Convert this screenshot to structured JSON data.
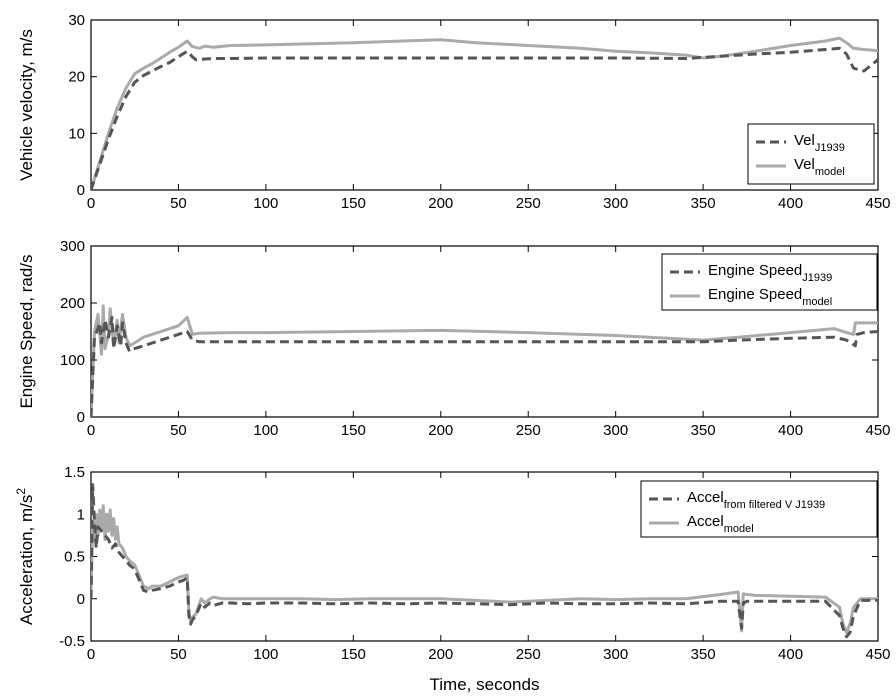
{
  "chart_data": [
    {
      "type": "line",
      "ylabel": "Vehicle velocity, m/s",
      "xlabel": "",
      "xlim": [
        0,
        450
      ],
      "ylim": [
        0,
        30
      ],
      "xticks": [
        0,
        50,
        100,
        150,
        200,
        250,
        300,
        350,
        400,
        450
      ],
      "yticks": [
        0,
        10,
        20,
        30
      ],
      "legend": {
        "position": "lower-right"
      },
      "series": [
        {
          "name": "Vel",
          "name_sub": "J1939",
          "style": "dashed",
          "color": "#555555",
          "x": [
            0,
            5,
            10,
            15,
            20,
            25,
            30,
            35,
            40,
            45,
            50,
            55,
            58,
            60,
            70,
            80,
            100,
            150,
            200,
            250,
            300,
            340,
            350,
            360,
            380,
            400,
            420,
            428,
            432,
            436,
            442,
            450
          ],
          "y": [
            0,
            4.5,
            9,
            13,
            16.5,
            19,
            20.2,
            21,
            21.8,
            22.5,
            23.5,
            24.5,
            23.5,
            23,
            23.2,
            23.2,
            23.3,
            23.3,
            23.3,
            23.3,
            23.3,
            23.2,
            23.4,
            23.6,
            24.0,
            24.3,
            24.8,
            25.0,
            24.0,
            21.5,
            21.0,
            23.0
          ]
        },
        {
          "name": "Vel",
          "name_sub": "model",
          "style": "solid",
          "color": "#aaaaaa",
          "x": [
            0,
            5,
            10,
            15,
            20,
            25,
            30,
            35,
            40,
            45,
            50,
            55,
            58,
            62,
            65,
            70,
            80,
            100,
            150,
            200,
            220,
            250,
            280,
            300,
            320,
            340,
            350,
            360,
            380,
            400,
            420,
            428,
            432,
            436,
            442,
            450
          ],
          "y": [
            0,
            5,
            10,
            14.5,
            18,
            20.5,
            21.5,
            22.3,
            23.3,
            24.3,
            25.2,
            26.3,
            25.3,
            25.0,
            25.4,
            25.2,
            25.5,
            25.6,
            26.0,
            26.5,
            26.0,
            25.5,
            25.0,
            24.5,
            24.2,
            23.8,
            23.3,
            23.6,
            24.5,
            25.5,
            26.3,
            26.8,
            26.0,
            25.0,
            24.8,
            24.6
          ]
        }
      ]
    },
    {
      "type": "line",
      "ylabel": "Engine Speed, rad/s",
      "xlabel": "",
      "xlim": [
        0,
        450
      ],
      "ylim": [
        0,
        300
      ],
      "xticks": [
        0,
        50,
        100,
        150,
        200,
        250,
        300,
        350,
        400,
        450
      ],
      "yticks": [
        0,
        100,
        200,
        300
      ],
      "legend": {
        "position": "top-right"
      },
      "series": [
        {
          "name": "Engine Speed",
          "name_sub": "J1939",
          "style": "dashed",
          "color": "#555555",
          "x": [
            0,
            2,
            4,
            5,
            6,
            8,
            10,
            12,
            13,
            15,
            17,
            18,
            20,
            22,
            25,
            30,
            40,
            50,
            55,
            58,
            62,
            80,
            100,
            150,
            200,
            250,
            300,
            350,
            370,
            400,
            425,
            432,
            437,
            438,
            442,
            450
          ],
          "y": [
            0,
            140,
            155,
            165,
            130,
            170,
            140,
            175,
            120,
            160,
            125,
            165,
            130,
            115,
            120,
            125,
            135,
            145,
            150,
            135,
            132,
            132,
            132,
            132,
            132,
            132,
            132,
            132,
            135,
            138,
            140,
            135,
            125,
            145,
            148,
            150
          ]
        },
        {
          "name": "Engine Speed",
          "name_sub": "model",
          "style": "solid",
          "color": "#aaaaaa",
          "x": [
            0,
            2,
            4,
            6,
            7,
            8,
            10,
            11,
            13,
            15,
            16,
            18,
            20,
            22,
            25,
            30,
            40,
            50,
            55,
            58,
            62,
            80,
            100,
            150,
            200,
            250,
            300,
            330,
            350,
            370,
            400,
            425,
            430,
            436,
            437,
            440,
            450
          ],
          "y": [
            0,
            150,
            180,
            110,
            195,
            120,
            145,
            190,
            125,
            170,
            130,
            180,
            140,
            125,
            130,
            140,
            150,
            160,
            175,
            145,
            147,
            148,
            148,
            150,
            152,
            148,
            143,
            138,
            135,
            140,
            148,
            155,
            150,
            145,
            165,
            165,
            165
          ]
        }
      ]
    },
    {
      "type": "line",
      "ylabel": "Acceleration, m/s",
      "ylabel_sup": "2",
      "xlabel": "Time, seconds",
      "xlim": [
        0,
        450
      ],
      "ylim": [
        -0.5,
        1.5
      ],
      "xticks": [
        0,
        50,
        100,
        150,
        200,
        250,
        300,
        350,
        400,
        450
      ],
      "yticks": [
        -0.5,
        0,
        0.5,
        1,
        1.5
      ],
      "legend": {
        "position": "top-right"
      },
      "series": [
        {
          "name": "Accel",
          "name_sub": "from filtered V J1939",
          "style": "dashed",
          "color": "#555555",
          "x": [
            0,
            1,
            2,
            3,
            4,
            6,
            8,
            10,
            12,
            14,
            16,
            18,
            20,
            22,
            25,
            28,
            30,
            33,
            35,
            40,
            45,
            50,
            53,
            55,
            56,
            57,
            58,
            60,
            63,
            65,
            68,
            70,
            75,
            80,
            90,
            100,
            120,
            140,
            160,
            180,
            200,
            220,
            240,
            260,
            280,
            300,
            320,
            340,
            360,
            370,
            372,
            373,
            375,
            380,
            400,
            420,
            428,
            430,
            432,
            434,
            436,
            440,
            450
          ],
          "y": [
            0,
            1.35,
            0.9,
            0.6,
            0.85,
            0.8,
            0.75,
            0.7,
            0.6,
            0.65,
            0.55,
            0.5,
            0.45,
            0.4,
            0.35,
            0.2,
            0.1,
            0.08,
            0.1,
            0.12,
            0.15,
            0.2,
            0.22,
            0.25,
            -0.2,
            -0.3,
            -0.25,
            -0.2,
            -0.05,
            -0.1,
            -0.05,
            -0.08,
            -0.05,
            -0.05,
            -0.06,
            -0.05,
            -0.05,
            -0.06,
            -0.05,
            -0.06,
            -0.05,
            -0.06,
            -0.07,
            -0.05,
            -0.06,
            -0.06,
            -0.05,
            -0.06,
            -0.03,
            -0.03,
            -0.35,
            -0.05,
            -0.03,
            -0.03,
            -0.03,
            -0.03,
            -0.2,
            -0.35,
            -0.45,
            -0.4,
            -0.2,
            -0.02,
            -0.02
          ]
        },
        {
          "name": "Accel",
          "name_sub": "model",
          "style": "solid",
          "color": "#aaaaaa",
          "x": [
            0,
            1,
            2,
            3,
            4,
            5,
            6,
            7,
            8,
            9,
            10,
            11,
            12,
            13,
            14,
            15,
            16,
            18,
            20,
            22,
            25,
            28,
            30,
            33,
            35,
            40,
            45,
            50,
            53,
            55,
            56,
            57,
            58,
            60,
            63,
            65,
            68,
            70,
            75,
            80,
            90,
            100,
            120,
            140,
            160,
            180,
            200,
            220,
            240,
            260,
            280,
            300,
            320,
            340,
            360,
            370,
            372,
            373,
            375,
            380,
            400,
            420,
            428,
            430,
            432,
            434,
            436,
            440,
            450
          ],
          "y": [
            0,
            0.9,
            0.7,
            1.0,
            0.75,
            1.05,
            0.8,
            1.1,
            0.7,
            1.0,
            0.8,
            1.05,
            0.75,
            0.95,
            0.7,
            0.85,
            0.65,
            0.6,
            0.5,
            0.45,
            0.4,
            0.25,
            0.15,
            0.12,
            0.15,
            0.15,
            0.2,
            0.25,
            0.27,
            0.28,
            -0.15,
            -0.28,
            -0.22,
            -0.18,
            0.0,
            -0.05,
            0.0,
            0.02,
            0.0,
            0.0,
            0.0,
            0.0,
            0.0,
            -0.01,
            0.0,
            0.0,
            0.0,
            -0.02,
            -0.04,
            -0.02,
            0.0,
            -0.01,
            0.0,
            0.0,
            0.05,
            0.08,
            -0.38,
            0.06,
            0.05,
            0.04,
            0.03,
            0.02,
            -0.1,
            -0.3,
            -0.4,
            -0.3,
            -0.1,
            0.0,
            0.0
          ]
        }
      ]
    }
  ]
}
